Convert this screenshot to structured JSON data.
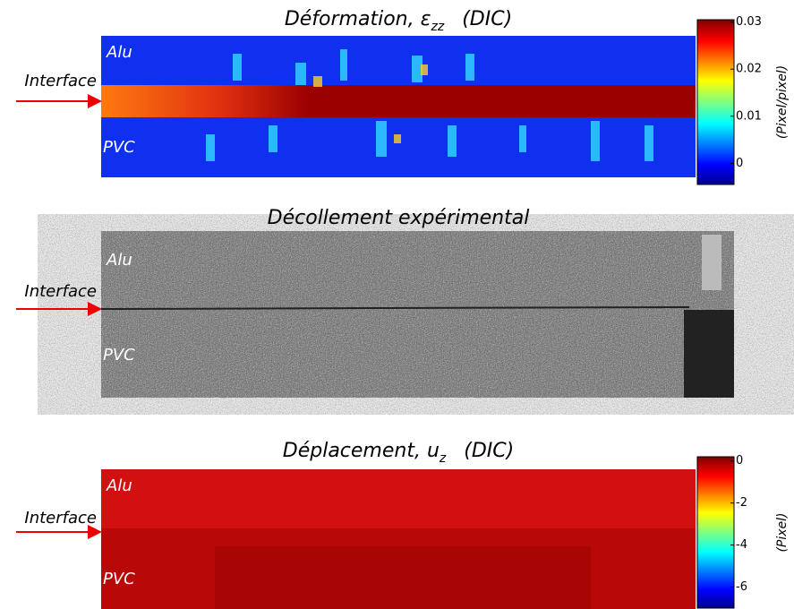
{
  "panels": [
    {
      "title": "Déformation, ε",
      "title_sub": "zz",
      "title_suffix": "(DIC)",
      "labels": {
        "top": "Alu",
        "bottom": "PVC",
        "interface": "Interface"
      },
      "colorbar": {
        "label": "(Pixel/pixel)",
        "lim": [
          -0.0045,
          0.0305
        ],
        "ticks": [
          0.03,
          0.02,
          0.01,
          0
        ]
      }
    },
    {
      "title": "Décollement expérimental",
      "labels": {
        "top": "Alu",
        "bottom": "PVC",
        "interface": "Interface"
      }
    },
    {
      "title": "Déplacement, u",
      "title_sub": "z",
      "title_suffix": "(DIC)",
      "labels": {
        "top": "Alu",
        "bottom": "PVC",
        "interface": "Interface"
      },
      "colorbar": {
        "label": "(Pixel)",
        "lim": [
          -7,
          0.2
        ],
        "ticks": [
          0,
          -2,
          -4,
          -6
        ]
      }
    }
  ]
}
